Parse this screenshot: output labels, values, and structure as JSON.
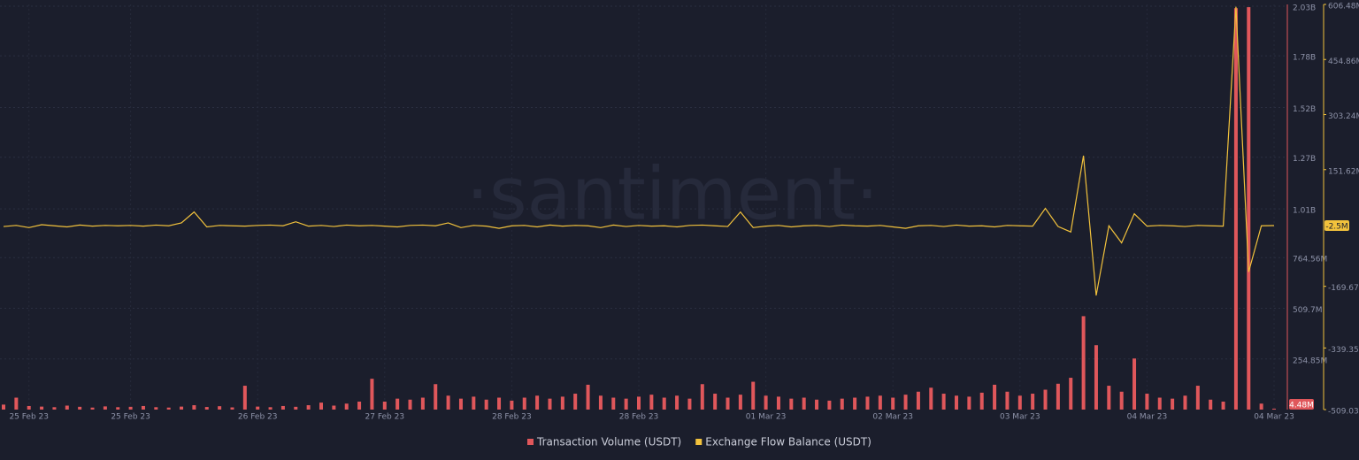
{
  "chart_data": {
    "type": "bar-line",
    "watermark": "·santiment·",
    "categories": [
      null,
      null,
      "25 Feb 23",
      null,
      null,
      null,
      null,
      null,
      null,
      null,
      "25 Feb 23",
      null,
      null,
      null,
      null,
      null,
      null,
      null,
      null,
      null,
      "26 Feb 23",
      null,
      null,
      null,
      null,
      null,
      null,
      null,
      null,
      null,
      "27 Feb 23",
      null,
      null,
      null,
      null,
      null,
      null,
      null,
      null,
      null,
      "28 Feb 23",
      null,
      null,
      null,
      null,
      null,
      null,
      null,
      null,
      null,
      "28 Feb 23",
      null,
      null,
      null,
      null,
      null,
      null,
      null,
      null,
      null,
      "01 Mar 23",
      null,
      null,
      null,
      null,
      null,
      null,
      null,
      null,
      null,
      "02 Mar 23",
      null,
      null,
      null,
      null,
      null,
      null,
      null,
      null,
      null,
      "03 Mar 23",
      null,
      null,
      null,
      null,
      null,
      null,
      null,
      null,
      null,
      "04 Mar 23",
      null,
      null,
      null,
      null,
      null,
      null,
      null,
      null,
      null,
      "04 Mar 23"
    ],
    "series": [
      {
        "name": "Transaction Volume (USDT)",
        "type": "bar",
        "color": "#e0575b",
        "current_label": "4.48M",
        "values": [
          25,
          60,
          18,
          15,
          12,
          20,
          14,
          10,
          16,
          12,
          14,
          18,
          12,
          10,
          15,
          22,
          13,
          17,
          11,
          120,
          15,
          12,
          18,
          14,
          22,
          35,
          20,
          30,
          40,
          155,
          40,
          55,
          50,
          60,
          128,
          70,
          55,
          65,
          50,
          60,
          45,
          60,
          70,
          55,
          65,
          80,
          125,
          70,
          60,
          55,
          65,
          75,
          60,
          70,
          55,
          128,
          80,
          60,
          75,
          140,
          70,
          65,
          55,
          60,
          50,
          45,
          55,
          60,
          65,
          70,
          60,
          75,
          90,
          110,
          80,
          70,
          65,
          85,
          125,
          90,
          70,
          80,
          100,
          130,
          160,
          470,
          324,
          120,
          90,
          257,
          80,
          60,
          55,
          70,
          120,
          50,
          40,
          2020,
          2025,
          30,
          4.48
        ]
      },
      {
        "name": "Exchange Flow Balance (USDT)",
        "type": "line",
        "axis": "y2",
        "color": "#f2c23c",
        "current_label": "-2.5M",
        "values": [
          -5,
          -2,
          -8,
          0,
          -3,
          -6,
          -1,
          -4,
          -2,
          -3,
          -2,
          -4,
          -1,
          -3,
          5,
          35,
          -6,
          -2,
          -3,
          -4,
          -2,
          -1,
          -3,
          8,
          -4,
          -2,
          -5,
          -1,
          -3,
          -2,
          -4,
          -6,
          -2,
          -1,
          -3,
          5,
          -8,
          -2,
          -4,
          -10,
          -3,
          -2,
          -6,
          -1,
          -4,
          -2,
          -3,
          -8,
          -1,
          -5,
          -2,
          -4,
          -3,
          -6,
          -2,
          -1,
          -3,
          -5,
          35,
          -8,
          -4,
          -2,
          -6,
          -3,
          -2,
          -5,
          -1,
          -3,
          -4,
          -2,
          -6,
          -10,
          -3,
          -2,
          -5,
          -1,
          -4,
          -3,
          -6,
          -2,
          -3,
          -4,
          45,
          -5,
          -20,
          190,
          -195,
          -3,
          -50,
          30,
          -4,
          -2,
          -3,
          -5,
          -2,
          -3,
          -4,
          600,
          -130,
          -3,
          -2.5
        ]
      }
    ],
    "ylim": [
      0,
      2038.8
    ],
    "yticks": [
      {
        "value": 2030,
        "label": "2.03B"
      },
      {
        "value": 1780,
        "label": "1.78B"
      },
      {
        "value": 1520,
        "label": "1.52B"
      },
      {
        "value": 1270,
        "label": "1.27B"
      },
      {
        "value": 1010,
        "label": "1.01B"
      },
      {
        "value": 764.56,
        "label": "764.56M"
      },
      {
        "value": 509.7,
        "label": "509.7M"
      },
      {
        "value": 254.85,
        "label": "254.85M"
      }
    ],
    "y2lim": [
      -509.03,
      606.48
    ],
    "y2ticks": [
      {
        "value": 606.48,
        "label": "606.48M"
      },
      {
        "value": 454.86,
        "label": "454.86M"
      },
      {
        "value": 303.24,
        "label": "303.24M"
      },
      {
        "value": 151.62,
        "label": "151.62M"
      },
      {
        "value": -169.67,
        "label": "-169.67M"
      },
      {
        "value": -339.35,
        "label": "-339.35M"
      },
      {
        "value": -509.03,
        "label": "-509.03M"
      }
    ],
    "grid": true
  }
}
